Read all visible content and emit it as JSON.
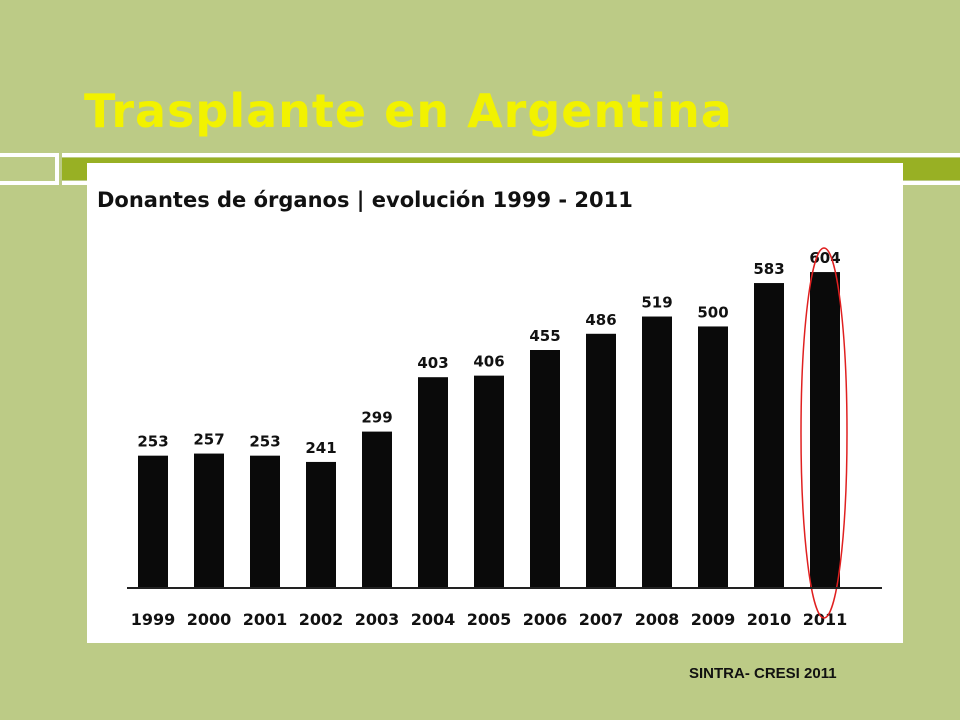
{
  "slide": {
    "title": "Trasplante en Argentina",
    "footer": "SINTRA- CRESI 2011"
  },
  "colors": {
    "background": "#bccb86",
    "title": "#f2f200",
    "accent_bar": "#98b024",
    "bars": "#0a0a0a",
    "highlight_ellipse": "#e02020"
  },
  "chart_data": {
    "type": "bar",
    "title": "Donantes de órganos | evolución 1999 - 2011",
    "xlabel": "",
    "ylabel": "",
    "categories": [
      "1999",
      "2000",
      "2001",
      "2002",
      "2003",
      "2004",
      "2005",
      "2006",
      "2007",
      "2008",
      "2009",
      "2010",
      "2011"
    ],
    "values": [
      253,
      257,
      253,
      241,
      299,
      403,
      406,
      455,
      486,
      519,
      500,
      583,
      604
    ],
    "value_labels": [
      "253",
      "257",
      "253",
      "241",
      "299",
      "403",
      "406",
      "455",
      "486",
      "519",
      "500",
      "583",
      "604"
    ],
    "ylim": [
      0,
      650
    ],
    "grid": false,
    "legend": "none",
    "highlight": "2011"
  }
}
